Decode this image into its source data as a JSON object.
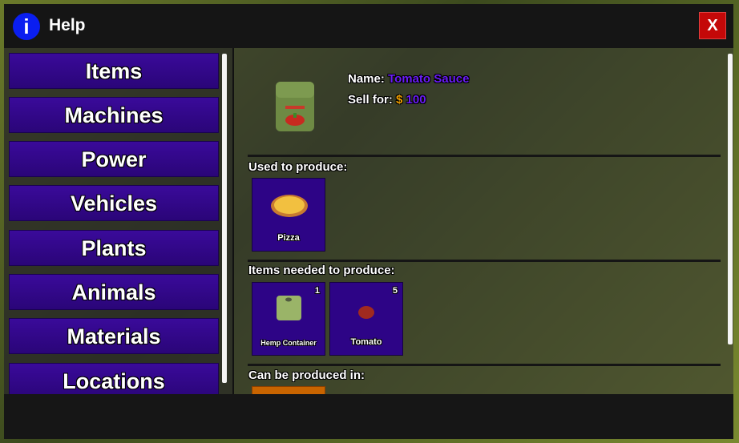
{
  "window": {
    "title": "Help",
    "close_label": "X"
  },
  "nav": {
    "items": [
      {
        "label": "Items"
      },
      {
        "label": "Machines"
      },
      {
        "label": "Power"
      },
      {
        "label": "Vehicles"
      },
      {
        "label": "Plants"
      },
      {
        "label": "Animals"
      },
      {
        "label": "Materials"
      },
      {
        "label": "Locations"
      }
    ]
  },
  "detail": {
    "name_label": "Name:",
    "name": "Tomato Sauce",
    "sell_label": "Sell for:",
    "currency": "$",
    "price": "100",
    "used_to_produce_label": "Used to produce:",
    "used_to_produce": [
      {
        "label": "Pizza"
      }
    ],
    "needed_label": "Items needed to produce:",
    "needed": [
      {
        "label": "Hemp Container",
        "count": "1"
      },
      {
        "label": "Tomato",
        "count": "5"
      }
    ],
    "produced_in_label": "Can be produced in:"
  },
  "colors": {
    "accent": "#2d0486",
    "name": "#6a1cf5",
    "price": "#f0a000",
    "close": "#c40808"
  }
}
